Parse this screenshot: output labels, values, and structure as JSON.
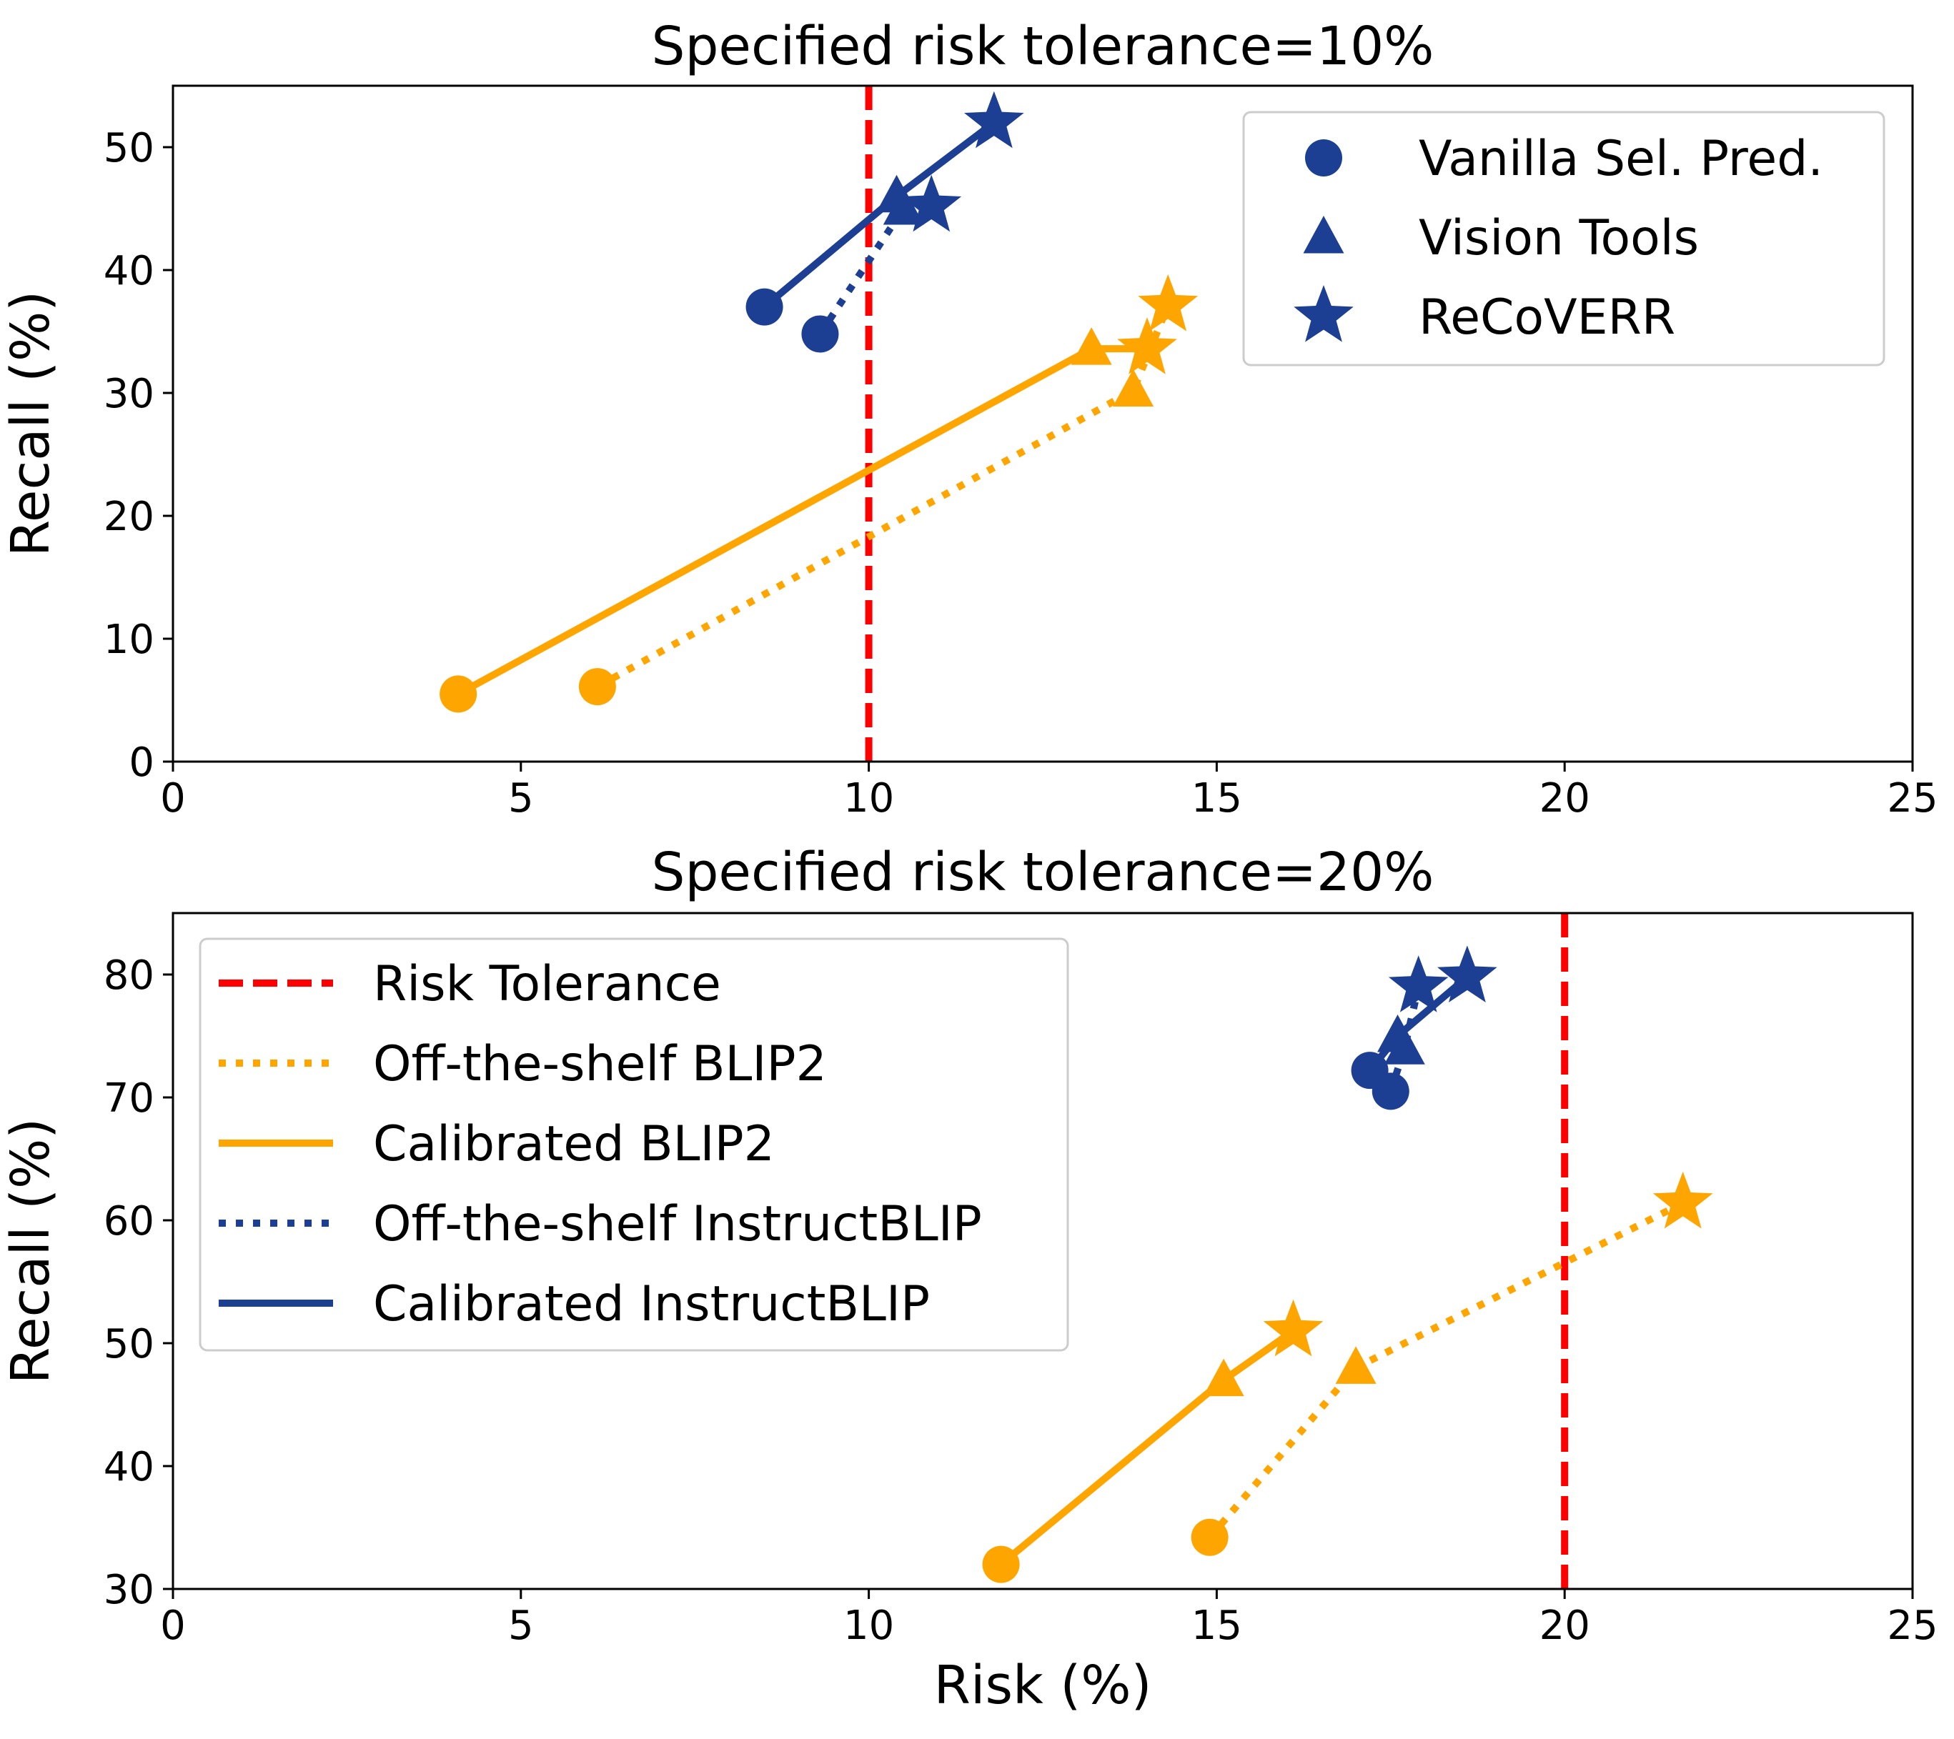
{
  "figure": {
    "colors": {
      "orange": "#FFA500",
      "navy": "#1C3F94",
      "red": "#FF0000",
      "axis": "#000000"
    },
    "legend_top": {
      "entries": [
        {
          "label": "Vanilla Sel. Pred.",
          "marker": "circle"
        },
        {
          "label": "Vision Tools",
          "marker": "triangle"
        },
        {
          "label": "ReCoVERR",
          "marker": "star"
        }
      ]
    },
    "legend_bottom": {
      "entries": [
        {
          "label": "Risk Tolerance",
          "style": "dashed",
          "color": "#FF0000"
        },
        {
          "label": "Off-the-shelf BLIP2",
          "style": "dotted",
          "color": "#FFA500"
        },
        {
          "label": "Calibrated BLIP2",
          "style": "solid",
          "color": "#FFA500"
        },
        {
          "label": "Off-the-shelf InstructBLIP",
          "style": "dotted",
          "color": "#1C3F94"
        },
        {
          "label": "Calibrated InstructBLIP",
          "style": "solid",
          "color": "#1C3F94"
        }
      ]
    }
  },
  "chart_data": [
    {
      "type": "line",
      "title": "Specified risk tolerance=10%",
      "xlabel": "",
      "ylabel": "Recall (%)",
      "xlim": [
        0,
        25
      ],
      "ylim": [
        0,
        55
      ],
      "xticks": [
        0,
        5,
        10,
        15,
        20,
        25
      ],
      "yticks": [
        0,
        10,
        20,
        30,
        40,
        50
      ],
      "risk_tolerance": 10,
      "legend_position": "upper right",
      "series": [
        {
          "name": "Off-the-shelf BLIP2",
          "color": "#FFA500",
          "style": "dotted",
          "points": [
            {
              "x": 6.1,
              "y": 6.1,
              "marker": "circle"
            },
            {
              "x": 13.8,
              "y": 30.2,
              "marker": "triangle"
            },
            {
              "x": 14.3,
              "y": 37.1,
              "marker": "star"
            }
          ]
        },
        {
          "name": "Calibrated BLIP2",
          "color": "#FFA500",
          "style": "solid",
          "points": [
            {
              "x": 4.1,
              "y": 5.5,
              "marker": "circle"
            },
            {
              "x": 13.2,
              "y": 33.6,
              "marker": "triangle"
            },
            {
              "x": 14.0,
              "y": 33.6,
              "marker": "star"
            }
          ]
        },
        {
          "name": "Off-the-shelf InstructBLIP",
          "color": "#1C3F94",
          "style": "dotted",
          "points": [
            {
              "x": 9.3,
              "y": 34.8,
              "marker": "circle"
            },
            {
              "x": 10.5,
              "y": 45.0,
              "marker": "triangle"
            },
            {
              "x": 10.9,
              "y": 45.2,
              "marker": "star"
            }
          ]
        },
        {
          "name": "Calibrated InstructBLIP",
          "color": "#1C3F94",
          "style": "solid",
          "points": [
            {
              "x": 8.5,
              "y": 37.0,
              "marker": "circle"
            },
            {
              "x": 10.4,
              "y": 46.0,
              "marker": "triangle"
            },
            {
              "x": 11.8,
              "y": 52.0,
              "marker": "star"
            }
          ]
        }
      ]
    },
    {
      "type": "line",
      "title": "Specified risk tolerance=20%",
      "xlabel": "Risk (%)",
      "ylabel": "Recall (%)",
      "xlim": [
        0,
        25
      ],
      "ylim": [
        30,
        85
      ],
      "xticks": [
        0,
        5,
        10,
        15,
        20,
        25
      ],
      "yticks": [
        30,
        40,
        50,
        60,
        70,
        80
      ],
      "risk_tolerance": 20,
      "legend_position": "upper left",
      "series": [
        {
          "name": "Off-the-shelf BLIP2",
          "color": "#FFA500",
          "style": "dotted",
          "points": [
            {
              "x": 14.9,
              "y": 34.2,
              "marker": "circle"
            },
            {
              "x": 17.0,
              "y": 48.0,
              "marker": "triangle"
            },
            {
              "x": 21.7,
              "y": 61.4,
              "marker": "star"
            }
          ]
        },
        {
          "name": "Calibrated BLIP2",
          "color": "#FFA500",
          "style": "solid",
          "points": [
            {
              "x": 11.9,
              "y": 32.0,
              "marker": "circle"
            },
            {
              "x": 15.1,
              "y": 47.0,
              "marker": "triangle"
            },
            {
              "x": 16.1,
              "y": 51.0,
              "marker": "star"
            }
          ]
        },
        {
          "name": "Off-the-shelf InstructBLIP",
          "color": "#1C3F94",
          "style": "dotted",
          "points": [
            {
              "x": 17.5,
              "y": 70.5,
              "marker": "circle"
            },
            {
              "x": 17.7,
              "y": 74.0,
              "marker": "triangle"
            },
            {
              "x": 17.9,
              "y": 79.0,
              "marker": "star"
            }
          ]
        },
        {
          "name": "Calibrated InstructBLIP",
          "color": "#1C3F94",
          "style": "solid",
          "points": [
            {
              "x": 17.2,
              "y": 72.2,
              "marker": "circle"
            },
            {
              "x": 17.6,
              "y": 75.0,
              "marker": "triangle"
            },
            {
              "x": 18.6,
              "y": 79.8,
              "marker": "star"
            }
          ]
        }
      ]
    }
  ]
}
